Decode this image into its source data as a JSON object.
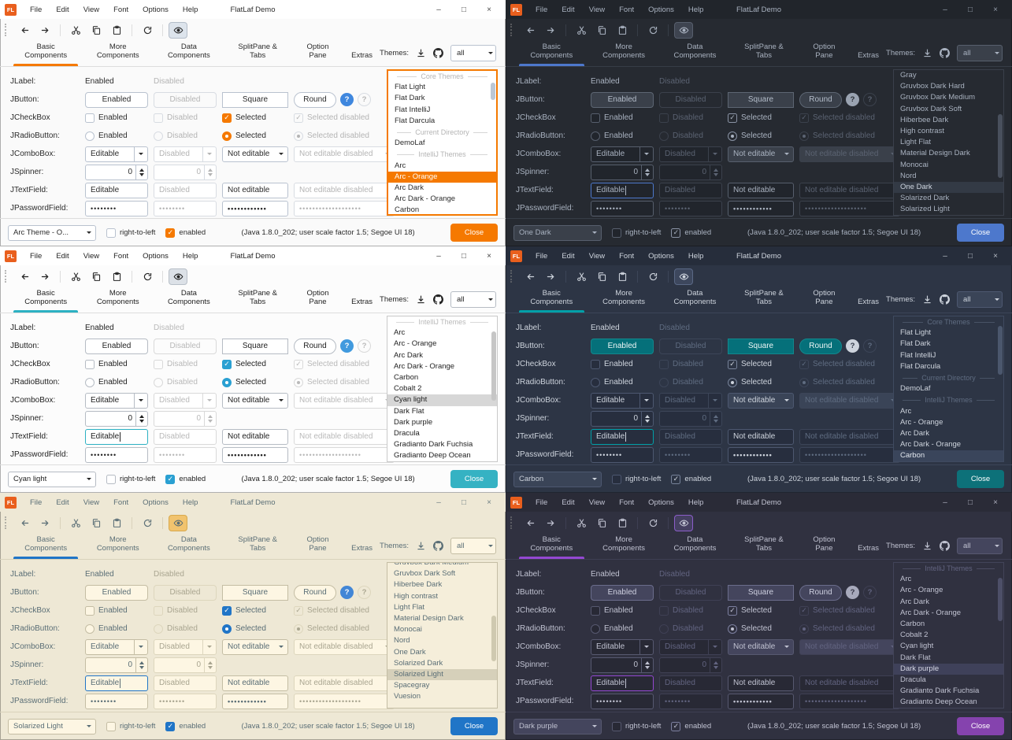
{
  "window": {
    "logo_text": "FL",
    "title": "FlatLaf Demo",
    "menus": [
      "File",
      "Edit",
      "View",
      "Font",
      "Options",
      "Help"
    ],
    "controls": {
      "minimize": "–",
      "maximize": "□",
      "close": "×"
    }
  },
  "toolbar_icons": [
    "back",
    "forward",
    "cut",
    "copy",
    "paste",
    "refresh",
    "show-hover-preview"
  ],
  "tabs": [
    "Basic Components",
    "More Components",
    "Data Components",
    "SplitPane & Tabs",
    "Option Pane",
    "Extras"
  ],
  "selected_tab": 0,
  "themes_panel": {
    "label": "Themes:",
    "filter_value": "all",
    "icons": [
      "download-icon",
      "github-icon"
    ]
  },
  "form": {
    "rows": [
      {
        "label": "JLabel:",
        "type": "label",
        "cells": [
          "Enabled",
          "Disabled"
        ]
      },
      {
        "label": "JButton:",
        "type": "button",
        "cells": [
          "Enabled",
          "Disabled",
          "Square",
          "Round"
        ],
        "extras": [
          "?",
          "?"
        ]
      },
      {
        "label": "JCheckBox",
        "type": "checkbox",
        "cells": [
          "Enabled",
          "Disabled",
          "Selected",
          "Selected disabled"
        ]
      },
      {
        "label": "JRadioButton:",
        "type": "radio",
        "cells": [
          "Enabled",
          "Disabled",
          "Selected",
          "Selected disabled"
        ]
      },
      {
        "label": "JComboBox:",
        "type": "combobox",
        "cells": [
          "Editable",
          "Disabled",
          "Not editable",
          "Not editable disabled"
        ]
      },
      {
        "label": "JSpinner:",
        "type": "spinner",
        "cells": [
          "0",
          "0"
        ]
      },
      {
        "label": "JTextField:",
        "type": "textfield",
        "cells": [
          "Editable",
          "Disabled",
          "Not editable",
          "Not editable disabled"
        ]
      },
      {
        "label": "JPasswordField:",
        "type": "password",
        "cells": [
          "••••••••",
          "••••••••",
          "••••••••••••",
          "•••••••••••••••••••"
        ]
      }
    ]
  },
  "statusbar": {
    "rtl_label": "right-to-left",
    "rtl_checked": false,
    "enabled_label": "enabled",
    "enabled_checked": true,
    "info": "(Java 1.8.0_202;  user scale factor 1.5; Segoe UI 18)",
    "close_label": "Close"
  },
  "panels": [
    {
      "name": "Arc - Orange",
      "mode": "light",
      "statusbar_combo": "Arc Theme - O...",
      "list_focused": true,
      "textfield_focused": false,
      "clip_top": false,
      "scrollbar": {
        "top_pct": 8,
        "height_pct": 12
      },
      "colors": {
        "bg": "#fafafa",
        "titlebar_bg": "#ffffff",
        "text": "#2b2b2b",
        "muted": "#b4b4b4",
        "accent": "#f57900",
        "border": "#b9c2cf",
        "border_muted": "#d8dce2",
        "field_bg": "#ffffff",
        "btn_bg": "#ffffff",
        "btn_border": "#b9c2cf",
        "btn_text": "#2b2b2b",
        "combo_bg": "#ffffff",
        "list_bg": "#ffffff",
        "list_border": "#f57900",
        "list_sel_bg": "#f57900",
        "list_sel_text": "#ffffff",
        "close_bg": "#f57900",
        "close_text": "#ffffff",
        "eye_bg": "#dde4ec",
        "eye_border": "#b4bdc9",
        "mark": "#f57900",
        "help1_bg": "#3f87de",
        "help1_text": "#ffffff",
        "divider": "#dddddd",
        "sb_thumb": "#bcc7d4"
      },
      "list": [
        {
          "t": "h",
          "label": "Core Themes"
        },
        {
          "t": "i",
          "label": "Flat Light"
        },
        {
          "t": "i",
          "label": "Flat Dark"
        },
        {
          "t": "i",
          "label": "Flat IntelliJ"
        },
        {
          "t": "i",
          "label": "Flat Darcula"
        },
        {
          "t": "h",
          "label": "Current Directory"
        },
        {
          "t": "i",
          "label": "DemoLaf"
        },
        {
          "t": "h",
          "label": "IntelliJ Themes"
        },
        {
          "t": "i",
          "label": "Arc"
        },
        {
          "t": "i",
          "label": "Arc - Orange",
          "selected": true
        },
        {
          "t": "i",
          "label": "Arc Dark"
        },
        {
          "t": "i",
          "label": "Arc Dark - Orange"
        },
        {
          "t": "i",
          "label": "Carbon"
        }
      ]
    },
    {
      "name": "One Dark",
      "mode": "dark",
      "statusbar_combo": "One Dark",
      "list_focused": false,
      "textfield_focused": true,
      "clip_top": false,
      "scrollbar": {
        "top_pct": 30,
        "height_pct": 45
      },
      "colors": {
        "bg": "#262a31",
        "titlebar_bg": "#21252b",
        "text": "#a9b2c0",
        "muted": "#5b6372",
        "accent": "#4d78cc",
        "border": "#575f6d",
        "border_muted": "#3b414c",
        "field_bg": "#21252c",
        "btn_bg": "#3a404a",
        "btn_border": "#5d6673",
        "btn_text": "#b4bdca",
        "combo_bg": "#3a404a",
        "list_bg": "#262a31",
        "list_border": "#3a404b",
        "list_sel_bg": "#333a45",
        "list_sel_text": "#cfd6e0",
        "close_bg": "#4d78cc",
        "close_text": "#ffffff",
        "eye_bg": "#3e4450",
        "eye_border": "#575f6d",
        "mark": "#8a93a5",
        "help1_bg": "#9aa3b1",
        "help1_text": "#262a31",
        "divider": "#373d47",
        "sb_thumb": "#49505d"
      },
      "list": [
        {
          "t": "i",
          "label": "Gray"
        },
        {
          "t": "i",
          "label": "Gruvbox Dark Hard"
        },
        {
          "t": "i",
          "label": "Gruvbox Dark Medium"
        },
        {
          "t": "i",
          "label": "Gruvbox Dark Soft"
        },
        {
          "t": "i",
          "label": "Hiberbee Dark"
        },
        {
          "t": "i",
          "label": "High contrast"
        },
        {
          "t": "i",
          "label": "Light Flat"
        },
        {
          "t": "i",
          "label": "Material Design Dark"
        },
        {
          "t": "i",
          "label": "Monocai"
        },
        {
          "t": "i",
          "label": "Nord"
        },
        {
          "t": "i",
          "label": "One Dark",
          "selected": true
        },
        {
          "t": "i",
          "label": "Solarized Dark"
        },
        {
          "t": "i",
          "label": "Solarized Light"
        }
      ]
    },
    {
      "name": "Cyan light",
      "mode": "light",
      "statusbar_combo": "Cyan light",
      "list_focused": false,
      "textfield_focused": true,
      "clip_top": false,
      "scrollbar": {
        "top_pct": 10,
        "height_pct": 48
      },
      "colors": {
        "bg": "#fcfcfc",
        "titlebar_bg": "#ffffff",
        "text": "#222222",
        "muted": "#b9b9b9",
        "accent": "#2cb1c3",
        "border": "#b6bcc4",
        "border_muted": "#d9d9d9",
        "field_bg": "#ffffff",
        "btn_bg": "#ffffff",
        "btn_border": "#b6bcc4",
        "btn_text": "#222222",
        "combo_bg": "#ffffff",
        "list_bg": "#ffffff",
        "list_border": "#c9c9c9",
        "list_sel_bg": "#d7d7d7",
        "list_sel_text": "#222222",
        "close_bg": "#35b2c3",
        "close_text": "#ffffff",
        "eye_bg": "#dce1e7",
        "eye_border": "#b8bfc8",
        "mark": "#2aa0d2",
        "help1_bg": "#419ade",
        "help1_text": "#ffffff",
        "divider": "#dddddd",
        "sb_thumb": "#c6c6c6"
      },
      "list": [
        {
          "t": "h",
          "label": "IntelliJ Themes"
        },
        {
          "t": "i",
          "label": "Arc"
        },
        {
          "t": "i",
          "label": "Arc - Orange"
        },
        {
          "t": "i",
          "label": "Arc Dark"
        },
        {
          "t": "i",
          "label": "Arc Dark - Orange"
        },
        {
          "t": "i",
          "label": "Carbon"
        },
        {
          "t": "i",
          "label": "Cobalt 2"
        },
        {
          "t": "i",
          "label": "Cyan light",
          "selected": true
        },
        {
          "t": "i",
          "label": "Dark Flat"
        },
        {
          "t": "i",
          "label": "Dark purple"
        },
        {
          "t": "i",
          "label": "Dracula"
        },
        {
          "t": "i",
          "label": "Gradianto Dark Fuchsia"
        },
        {
          "t": "i",
          "label": "Gradianto Deep Ocean"
        }
      ]
    },
    {
      "name": "Carbon",
      "mode": "dark",
      "statusbar_combo": "Carbon",
      "list_focused": false,
      "textfield_focused": true,
      "clip_top": false,
      "scrollbar": {
        "top_pct": 6,
        "height_pct": 34
      },
      "colors": {
        "bg": "#2d3545",
        "titlebar_bg": "#262d3b",
        "text": "#ced4dd",
        "muted": "#5f6c81",
        "accent": "#00a0a8",
        "border": "#4d5870",
        "border_muted": "#3c4558",
        "field_bg": "#272e3e",
        "btn_bg": "#05707a",
        "btn_border": "#12888d",
        "btn_text": "#eef6f6",
        "combo_bg": "#3a4457",
        "list_bg": "#2d3545",
        "list_border": "#3f4a60",
        "list_sel_bg": "#3a455b",
        "list_sel_text": "#e2e7ee",
        "close_bg": "#0d7179",
        "close_text": "#ffffff",
        "eye_bg": "#3d475d",
        "eye_border": "#5a6885",
        "mark": "#77839a",
        "help1_bg": "#ced4dd",
        "help1_text": "#2d3545",
        "divider": "#3c4558",
        "sb_thumb": "#4b576d"
      },
      "list": [
        {
          "t": "h",
          "label": "Core Themes"
        },
        {
          "t": "i",
          "label": "Flat Light"
        },
        {
          "t": "i",
          "label": "Flat Dark"
        },
        {
          "t": "i",
          "label": "Flat IntelliJ"
        },
        {
          "t": "i",
          "label": "Flat Darcula"
        },
        {
          "t": "h",
          "label": "Current Directory"
        },
        {
          "t": "i",
          "label": "DemoLaf"
        },
        {
          "t": "h",
          "label": "IntelliJ Themes"
        },
        {
          "t": "i",
          "label": "Arc"
        },
        {
          "t": "i",
          "label": "Arc - Orange"
        },
        {
          "t": "i",
          "label": "Arc Dark"
        },
        {
          "t": "i",
          "label": "Arc Dark - Orange"
        },
        {
          "t": "i",
          "label": "Carbon",
          "selected": true
        }
      ]
    },
    {
      "name": "Solarized Light",
      "mode": "light",
      "statusbar_combo": "Solarized Light",
      "list_focused": false,
      "textfield_focused": true,
      "clip_top": true,
      "scrollbar": {
        "top_pct": 36,
        "height_pct": 32
      },
      "colors": {
        "bg": "#eee8d5",
        "titlebar_bg": "#eee8d5",
        "text": "#5a6e76",
        "muted": "#a9a590",
        "accent": "#2075c7",
        "border": "#c4bda4",
        "border_muted": "#ddd6bd",
        "field_bg": "#fdf6e3",
        "btn_bg": "#fdf6e3",
        "btn_border": "#c4bda4",
        "btn_text": "#5a6e76",
        "combo_bg": "#fdf6e3",
        "list_bg": "#f5eeda",
        "list_border": "#c4bda4",
        "list_sel_bg": "#d6d0ba",
        "list_sel_text": "#5a6e76",
        "close_bg": "#2075c7",
        "close_text": "#ffffff",
        "eye_bg": "#f1c36e",
        "eye_border": "#d8a94e",
        "mark": "#2075c7",
        "help1_bg": "#4286d6",
        "help1_text": "#ffffff",
        "divider": "#d9d2bb",
        "sb_thumb": "#cfc9b0"
      },
      "list": [
        {
          "t": "i",
          "label": "Gruvbox Dark Medium"
        },
        {
          "t": "i",
          "label": "Gruvbox Dark Soft"
        },
        {
          "t": "i",
          "label": "Hiberbee Dark"
        },
        {
          "t": "i",
          "label": "High contrast"
        },
        {
          "t": "i",
          "label": "Light Flat"
        },
        {
          "t": "i",
          "label": "Material Design Dark"
        },
        {
          "t": "i",
          "label": "Monocai"
        },
        {
          "t": "i",
          "label": "Nord"
        },
        {
          "t": "i",
          "label": "One Dark"
        },
        {
          "t": "i",
          "label": "Solarized Dark"
        },
        {
          "t": "i",
          "label": "Solarized Light",
          "selected": true
        },
        {
          "t": "i",
          "label": "Spacegray"
        },
        {
          "t": "i",
          "label": "Vuesion"
        }
      ]
    },
    {
      "name": "Dark purple",
      "mode": "dark",
      "statusbar_combo": "Dark purple",
      "list_focused": false,
      "textfield_focused": true,
      "clip_top": false,
      "scrollbar": {
        "top_pct": 10,
        "height_pct": 30
      },
      "colors": {
        "bg": "#303140",
        "titlebar_bg": "#2a2b37",
        "text": "#c0c2d1",
        "muted": "#626480",
        "accent": "#9448d2",
        "border": "#575970",
        "border_muted": "#3f4054",
        "field_bg": "#282935",
        "btn_bg": "#44455d",
        "btn_border": "#6b6d8c",
        "btn_text": "#ced0e0",
        "combo_bg": "#44455d",
        "list_bg": "#303140",
        "list_border": "#424459",
        "list_sel_bg": "#3f415a",
        "list_sel_text": "#d6d8e6",
        "close_bg": "#8543ae",
        "close_text": "#ffffff",
        "eye_bg": "#454061",
        "eye_border": "#8b5dc9",
        "mark": "#7d80a0",
        "help1_bg": "#a8aabc",
        "help1_text": "#303140",
        "divider": "#3e3f53",
        "sb_thumb": "#4d4f68"
      },
      "list": [
        {
          "t": "h",
          "label": "IntelliJ Themes"
        },
        {
          "t": "i",
          "label": "Arc"
        },
        {
          "t": "i",
          "label": "Arc - Orange"
        },
        {
          "t": "i",
          "label": "Arc Dark"
        },
        {
          "t": "i",
          "label": "Arc Dark - Orange"
        },
        {
          "t": "i",
          "label": "Carbon"
        },
        {
          "t": "i",
          "label": "Cobalt 2"
        },
        {
          "t": "i",
          "label": "Cyan light"
        },
        {
          "t": "i",
          "label": "Dark Flat"
        },
        {
          "t": "i",
          "label": "Dark purple",
          "selected": true
        },
        {
          "t": "i",
          "label": "Dracula"
        },
        {
          "t": "i",
          "label": "Gradianto Dark Fuchsia"
        },
        {
          "t": "i",
          "label": "Gradianto Deep Ocean"
        }
      ]
    }
  ]
}
